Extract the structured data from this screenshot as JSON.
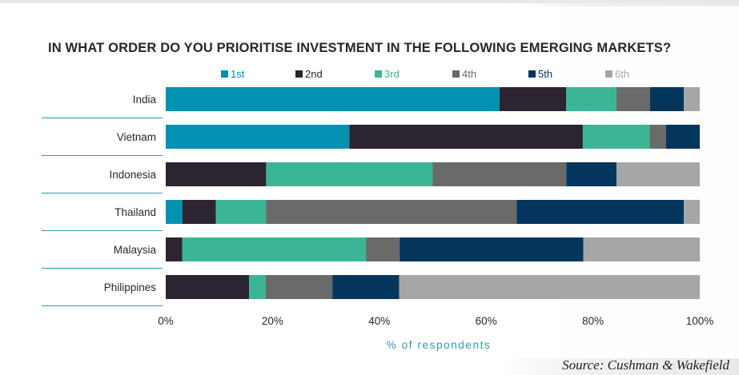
{
  "chart_data": {
    "type": "bar",
    "orientation": "horizontal",
    "stacked": true,
    "title": "IN WHAT ORDER DO YOU PRIORITISE INVESTMENT IN THE FOLLOWING EMERGING MARKETS?",
    "xlabel": "% of respondents",
    "ylabel": "",
    "xlim": [
      0,
      100
    ],
    "x_ticks": [
      "0%",
      "20%",
      "40%",
      "60%",
      "80%",
      "100%"
    ],
    "x_tick_values": [
      0,
      20,
      40,
      60,
      80,
      100
    ],
    "legend_position": "top",
    "categories": [
      "India",
      "Vietnam",
      "Indonesia",
      "Thailand",
      "Malaysia",
      "Philippines"
    ],
    "series": [
      {
        "name": "1st",
        "color": "#0292b1",
        "values": [
          62.5,
          34.4,
          0,
          3.1,
          0,
          0
        ]
      },
      {
        "name": "2nd",
        "color": "#2c2430",
        "values": [
          12.5,
          43.7,
          18.8,
          6.3,
          3.1,
          15.6
        ]
      },
      {
        "name": "3rd",
        "color": "#3bb695",
        "values": [
          9.4,
          12.5,
          31.2,
          9.4,
          34.4,
          3.1
        ]
      },
      {
        "name": "4th",
        "color": "#6a6a6a",
        "values": [
          6.3,
          3.1,
          25.0,
          46.9,
          6.3,
          12.5
        ]
      },
      {
        "name": "5th",
        "color": "#04355c",
        "values": [
          6.3,
          6.3,
          9.4,
          31.3,
          34.4,
          12.5
        ]
      },
      {
        "name": "6th",
        "color": "#a6a6a6",
        "values": [
          3.0,
          0,
          15.6,
          3.0,
          21.8,
          56.3
        ]
      }
    ]
  },
  "source": "Source: Cushman & Wakefield"
}
